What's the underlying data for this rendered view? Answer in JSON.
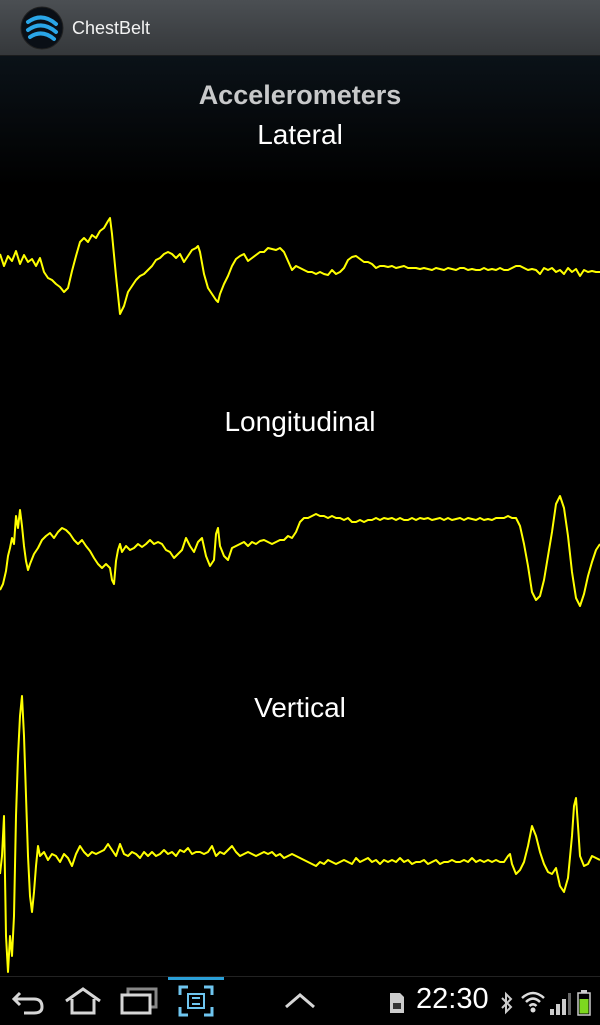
{
  "app": {
    "title": "ChestBelt",
    "icon": "chestbelt-app-icon"
  },
  "screen": {
    "heading": "Accelerometers",
    "plots": [
      {
        "label": "Lateral"
      },
      {
        "label": "Longitudinal"
      },
      {
        "label": "Vertical"
      }
    ],
    "trace_color": "#ffff00"
  },
  "status": {
    "time": "22:30"
  },
  "nav": {
    "icons": [
      "back-icon",
      "home-icon",
      "recent-apps-icon",
      "screenshot-icon",
      "expand-up-icon"
    ],
    "status_icons": [
      "sd-card-icon",
      "bluetooth-icon",
      "wifi-icon",
      "signal-icon",
      "battery-icon"
    ]
  }
}
